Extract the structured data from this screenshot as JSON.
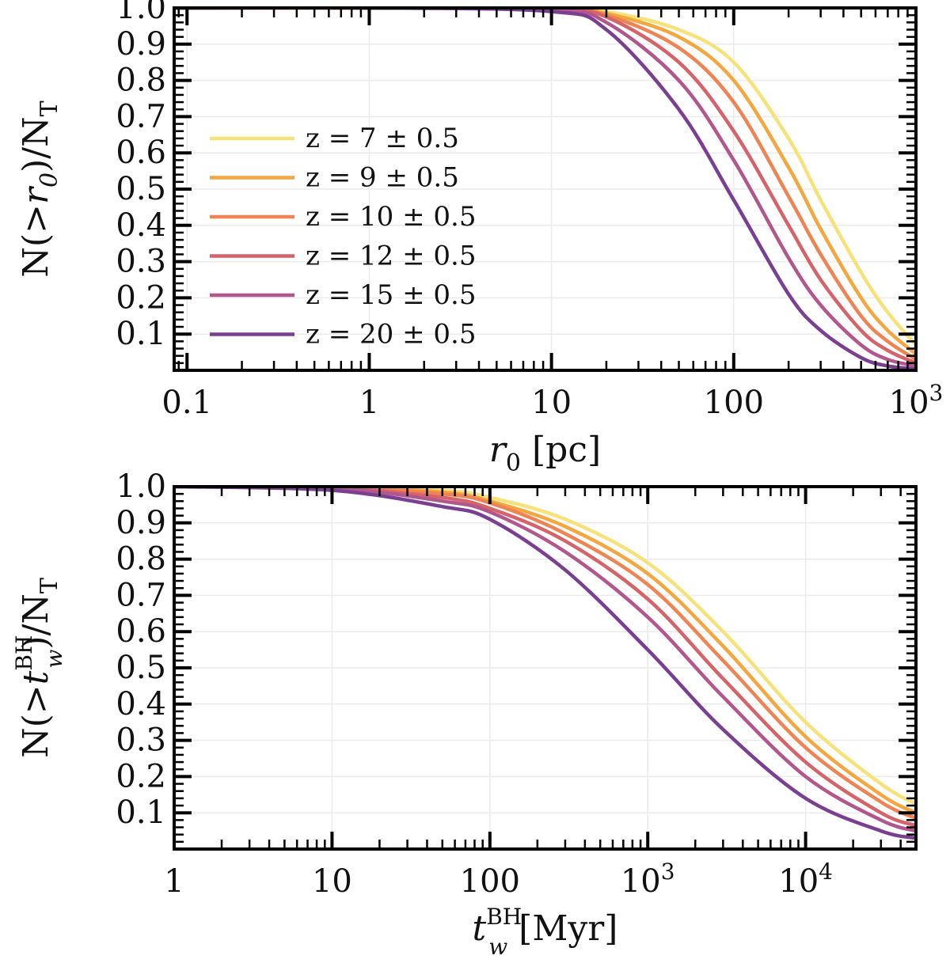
{
  "chart_data": [
    {
      "type": "line",
      "id": "top",
      "xscale": "log",
      "xlim": [
        0.085,
        1000
      ],
      "ylim": [
        0.0,
        1.0
      ],
      "ylabel": "N(> r0)/NT",
      "xlabel": "r0 [pc]",
      "ylabel_parts": {
        "pre": "N(>",
        "var": "r",
        "sub": "0",
        "post": ")/N",
        "post_sub": "T"
      },
      "xlabel_parts": {
        "var": "r",
        "sub": "0",
        "post": " [pc]"
      },
      "xticks": [
        {
          "value": 0.1,
          "label": "0.1"
        },
        {
          "value": 1,
          "label": "1"
        },
        {
          "value": 10,
          "label": "10"
        },
        {
          "value": 100,
          "label": "100"
        },
        {
          "value": 1000,
          "label": "10",
          "sup": "3"
        }
      ],
      "yticks": [
        {
          "value": 0.1,
          "label": "0.1"
        },
        {
          "value": 0.2,
          "label": "0.2"
        },
        {
          "value": 0.3,
          "label": "0.3"
        },
        {
          "value": 0.4,
          "label": "0.4"
        },
        {
          "value": 0.5,
          "label": "0.5"
        },
        {
          "value": 0.6,
          "label": "0.6"
        },
        {
          "value": 0.7,
          "label": "0.7"
        },
        {
          "value": 0.8,
          "label": "0.8"
        },
        {
          "value": 0.9,
          "label": "0.9"
        },
        {
          "value": 1.0,
          "label": "1.0"
        }
      ],
      "legend_position": "center-left",
      "series": [
        {
          "name": "z = 7 ± 0.5",
          "color": "#f7e27a",
          "x": [
            0.085,
            1,
            10,
            20,
            50,
            100,
            200,
            300,
            500,
            700,
            1000
          ],
          "y": [
            1.0,
            1.0,
            0.999,
            0.99,
            0.94,
            0.85,
            0.64,
            0.47,
            0.27,
            0.16,
            0.07
          ]
        },
        {
          "name": "z = 9 ± 0.5",
          "color": "#f4a63f",
          "x": [
            0.085,
            1,
            10,
            20,
            50,
            100,
            200,
            300,
            500,
            700,
            1000
          ],
          "y": [
            1.0,
            1.0,
            0.999,
            0.985,
            0.92,
            0.8,
            0.56,
            0.39,
            0.2,
            0.11,
            0.045
          ]
        },
        {
          "name": "z = 10 ± 0.5",
          "color": "#ee8454",
          "x": [
            0.085,
            1,
            10,
            20,
            50,
            100,
            200,
            300,
            500,
            700,
            1000
          ],
          "y": [
            1.0,
            1.0,
            0.998,
            0.98,
            0.89,
            0.74,
            0.48,
            0.32,
            0.15,
            0.08,
            0.03
          ]
        },
        {
          "name": "z = 12 ± 0.5",
          "color": "#d4646a",
          "x": [
            0.085,
            1,
            10,
            20,
            50,
            100,
            200,
            300,
            500,
            700,
            1000
          ],
          "y": [
            1.0,
            1.0,
            0.997,
            0.975,
            0.85,
            0.66,
            0.4,
            0.25,
            0.11,
            0.055,
            0.02
          ]
        },
        {
          "name": "z = 15 ± 0.5",
          "color": "#b2578d",
          "x": [
            0.085,
            1,
            10,
            20,
            50,
            100,
            200,
            300,
            500,
            700,
            1000
          ],
          "y": [
            1.0,
            1.0,
            0.996,
            0.96,
            0.8,
            0.58,
            0.31,
            0.18,
            0.07,
            0.03,
            0.012
          ]
        },
        {
          "name": "z = 20 ± 0.5",
          "color": "#7b3f91",
          "x": [
            0.085,
            1,
            10,
            20,
            50,
            100,
            200,
            300,
            500,
            700,
            1000
          ],
          "y": [
            1.0,
            1.0,
            0.99,
            0.94,
            0.72,
            0.47,
            0.21,
            0.11,
            0.035,
            0.012,
            0.004
          ]
        }
      ]
    },
    {
      "type": "line",
      "id": "bottom",
      "xscale": "log",
      "xlim": [
        1,
        50000
      ],
      "ylim": [
        0.0,
        1.0
      ],
      "ylabel": "N(> tw^BH)/NT",
      "xlabel": "tw^BH [Myr]",
      "ylabel_parts": {
        "pre": "N(>",
        "var": "t",
        "sub": "w",
        "sup": "BH",
        "post": ")/N",
        "post_sub": "T"
      },
      "xlabel_parts": {
        "var": "t",
        "sub": "w",
        "sup": "BH",
        "post": " [Myr]"
      },
      "xticks": [
        {
          "value": 1,
          "label": "1"
        },
        {
          "value": 10,
          "label": "10"
        },
        {
          "value": 100,
          "label": "100"
        },
        {
          "value": 1000,
          "label": "10",
          "sup": "3"
        },
        {
          "value": 10000,
          "label": "10",
          "sup": "4"
        }
      ],
      "yticks": [
        {
          "value": 0.1,
          "label": "0.1"
        },
        {
          "value": 0.2,
          "label": "0.2"
        },
        {
          "value": 0.3,
          "label": "0.3"
        },
        {
          "value": 0.4,
          "label": "0.4"
        },
        {
          "value": 0.5,
          "label": "0.5"
        },
        {
          "value": 0.6,
          "label": "0.6"
        },
        {
          "value": 0.7,
          "label": "0.7"
        },
        {
          "value": 0.8,
          "label": "0.8"
        },
        {
          "value": 0.9,
          "label": "0.9"
        },
        {
          "value": 1.0,
          "label": "1.0"
        }
      ],
      "series": [
        {
          "name": "z = 7 ± 0.5",
          "color": "#f7e27a",
          "x": [
            1,
            10,
            50,
            100,
            300,
            1000,
            3000,
            10000,
            30000,
            50000
          ],
          "y": [
            1.0,
            0.999,
            0.99,
            0.97,
            0.91,
            0.79,
            0.6,
            0.35,
            0.18,
            0.125
          ]
        },
        {
          "name": "z = 9 ± 0.5",
          "color": "#f4a63f",
          "x": [
            1,
            10,
            50,
            100,
            300,
            1000,
            3000,
            10000,
            30000,
            50000
          ],
          "y": [
            1.0,
            0.999,
            0.985,
            0.96,
            0.89,
            0.76,
            0.56,
            0.31,
            0.15,
            0.1
          ]
        },
        {
          "name": "z = 10 ± 0.5",
          "color": "#ee8454",
          "x": [
            1,
            10,
            50,
            100,
            300,
            1000,
            3000,
            10000,
            30000,
            50000
          ],
          "y": [
            1.0,
            0.998,
            0.98,
            0.955,
            0.87,
            0.73,
            0.52,
            0.28,
            0.13,
            0.085
          ]
        },
        {
          "name": "z = 12 ± 0.5",
          "color": "#d4646a",
          "x": [
            1,
            10,
            50,
            100,
            300,
            1000,
            3000,
            10000,
            30000,
            50000
          ],
          "y": [
            1.0,
            0.997,
            0.97,
            0.94,
            0.85,
            0.69,
            0.47,
            0.24,
            0.1,
            0.065
          ]
        },
        {
          "name": "z = 15 ± 0.5",
          "color": "#b2578d",
          "x": [
            1,
            10,
            50,
            100,
            300,
            1000,
            3000,
            10000,
            30000,
            50000
          ],
          "y": [
            1.0,
            0.996,
            0.96,
            0.93,
            0.82,
            0.64,
            0.42,
            0.2,
            0.08,
            0.05
          ]
        },
        {
          "name": "z = 20 ± 0.5",
          "color": "#7b3f91",
          "x": [
            1,
            10,
            50,
            100,
            300,
            1000,
            3000,
            10000,
            30000,
            50000
          ],
          "y": [
            1.0,
            0.99,
            0.945,
            0.91,
            0.77,
            0.55,
            0.33,
            0.14,
            0.05,
            0.03
          ]
        }
      ]
    }
  ]
}
